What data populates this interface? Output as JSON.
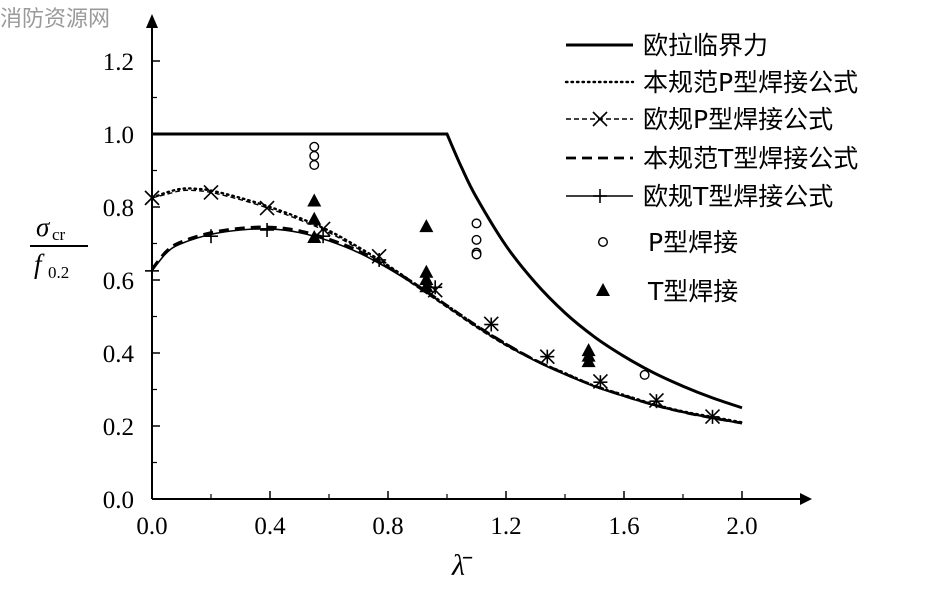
{
  "watermark": "消防资源网",
  "chart_data": {
    "type": "line",
    "xlabel": "λ̄",
    "ylabel": {
      "numerator": "σ",
      "numerator_sub": "cr",
      "denominator": "f",
      "denominator_sub": "0.2"
    },
    "xlim": [
      0,
      2.2
    ],
    "ylim": [
      0,
      1.3
    ],
    "xticks": [
      0.0,
      0.4,
      0.8,
      1.2,
      1.6,
      2.0
    ],
    "xtick_labels": [
      "0.0",
      "0.4",
      "0.8",
      "1.2",
      "1.6",
      "2.0"
    ],
    "yticks": [
      0.0,
      0.2,
      0.4,
      0.6,
      0.8,
      1.0,
      1.2
    ],
    "ytick_labels": [
      "0.0",
      "0.2",
      "0.4",
      "0.6",
      "0.8",
      "1.0",
      "1.2"
    ],
    "legend_placement": "top-right",
    "series": [
      {
        "name": "欧拉临界力",
        "style": "solid-thick",
        "x": [
          0,
          0.2,
          0.4,
          0.6,
          0.8,
          1.0,
          1.05,
          1.1,
          1.2,
          1.3,
          1.4,
          1.5,
          1.6,
          1.7,
          1.8,
          1.9,
          2.0
        ],
        "y": [
          1.0,
          1.0,
          1.0,
          1.0,
          1.0,
          1.0,
          0.907,
          0.826,
          0.694,
          0.592,
          0.51,
          0.444,
          0.391,
          0.346,
          0.309,
          0.277,
          0.25
        ]
      },
      {
        "name": "本规范P型焊接公式",
        "style": "dotted",
        "x": [
          0,
          0.05,
          0.1,
          0.15,
          0.2,
          0.3,
          0.4,
          0.5,
          0.6,
          0.7,
          0.8,
          0.9,
          1.0,
          1.1,
          1.2,
          1.3,
          1.4,
          1.5,
          1.6,
          1.7,
          1.8,
          1.9,
          2.0
        ],
        "y": [
          0.825,
          0.84,
          0.85,
          0.85,
          0.845,
          0.825,
          0.8,
          0.77,
          0.735,
          0.69,
          0.64,
          0.585,
          0.53,
          0.475,
          0.425,
          0.38,
          0.345,
          0.31,
          0.285,
          0.26,
          0.24,
          0.225,
          0.21
        ]
      },
      {
        "name": "欧规P型焊接公式",
        "style": "dashed-cross",
        "x": [
          0,
          0.05,
          0.1,
          0.15,
          0.2,
          0.3,
          0.4,
          0.5,
          0.6,
          0.7,
          0.8,
          0.9,
          1.0,
          1.1,
          1.2,
          1.3,
          1.4,
          1.5,
          1.6,
          1.7,
          1.8,
          1.9,
          2.0
        ],
        "y": [
          0.825,
          0.835,
          0.845,
          0.845,
          0.84,
          0.82,
          0.795,
          0.765,
          0.73,
          0.685,
          0.635,
          0.58,
          0.525,
          0.47,
          0.42,
          0.378,
          0.342,
          0.31,
          0.283,
          0.26,
          0.24,
          0.223,
          0.208
        ],
        "markers_x": [
          0.0,
          0.2,
          0.39,
          0.58,
          0.77,
          0.96,
          1.15,
          1.34,
          1.52,
          1.71,
          1.9
        ],
        "markers_y": [
          0.825,
          0.84,
          0.797,
          0.74,
          0.665,
          0.572,
          0.48,
          0.39,
          0.322,
          0.27,
          0.226
        ]
      },
      {
        "name": "本规范T型焊接公式",
        "style": "dashed-thick",
        "x": [
          0,
          0.05,
          0.1,
          0.2,
          0.3,
          0.4,
          0.5,
          0.6,
          0.7,
          0.8,
          0.9,
          1.0,
          1.1,
          1.2,
          1.3,
          1.4,
          1.5,
          1.6,
          1.7,
          1.8,
          1.9,
          2.0
        ],
        "y": [
          0.63,
          0.68,
          0.705,
          0.73,
          0.742,
          0.745,
          0.735,
          0.712,
          0.68,
          0.635,
          0.585,
          0.53,
          0.475,
          0.425,
          0.38,
          0.343,
          0.31,
          0.283,
          0.258,
          0.238,
          0.222,
          0.208
        ]
      },
      {
        "name": "欧规T型焊接公式",
        "style": "solid-plus",
        "x": [
          0,
          0.05,
          0.1,
          0.2,
          0.3,
          0.4,
          0.5,
          0.6,
          0.7,
          0.8,
          0.9,
          1.0,
          1.1,
          1.2,
          1.3,
          1.4,
          1.5,
          1.6,
          1.7,
          1.8,
          1.9,
          2.0
        ],
        "y": [
          0.625,
          0.675,
          0.7,
          0.725,
          0.737,
          0.74,
          0.73,
          0.707,
          0.675,
          0.632,
          0.582,
          0.527,
          0.472,
          0.422,
          0.378,
          0.341,
          0.308,
          0.281,
          0.257,
          0.237,
          0.221,
          0.207
        ],
        "markers_x": [
          0.0,
          0.2,
          0.39,
          0.58,
          0.77,
          0.96,
          1.15,
          1.34,
          1.52,
          1.71,
          1.9
        ],
        "markers_y": [
          0.625,
          0.72,
          0.737,
          0.72,
          0.655,
          0.58,
          0.478,
          0.39,
          0.32,
          0.268,
          0.225
        ]
      },
      {
        "name": "P型焊接",
        "style": "scatter-circle",
        "x": [
          0.55,
          0.55,
          0.55,
          1.1,
          1.1,
          1.1,
          1.1,
          1.67
        ],
        "y": [
          0.965,
          0.94,
          0.915,
          0.755,
          0.71,
          0.675,
          0.67,
          0.34
        ]
      },
      {
        "name": "T型焊接",
        "style": "scatter-triangle",
        "x": [
          0.55,
          0.55,
          0.55,
          0.93,
          0.93,
          0.93,
          0.93,
          1.48,
          1.48,
          1.48
        ],
        "y": [
          0.815,
          0.765,
          0.715,
          0.745,
          0.62,
          0.6,
          0.58,
          0.405,
          0.39,
          0.375
        ]
      }
    ]
  }
}
